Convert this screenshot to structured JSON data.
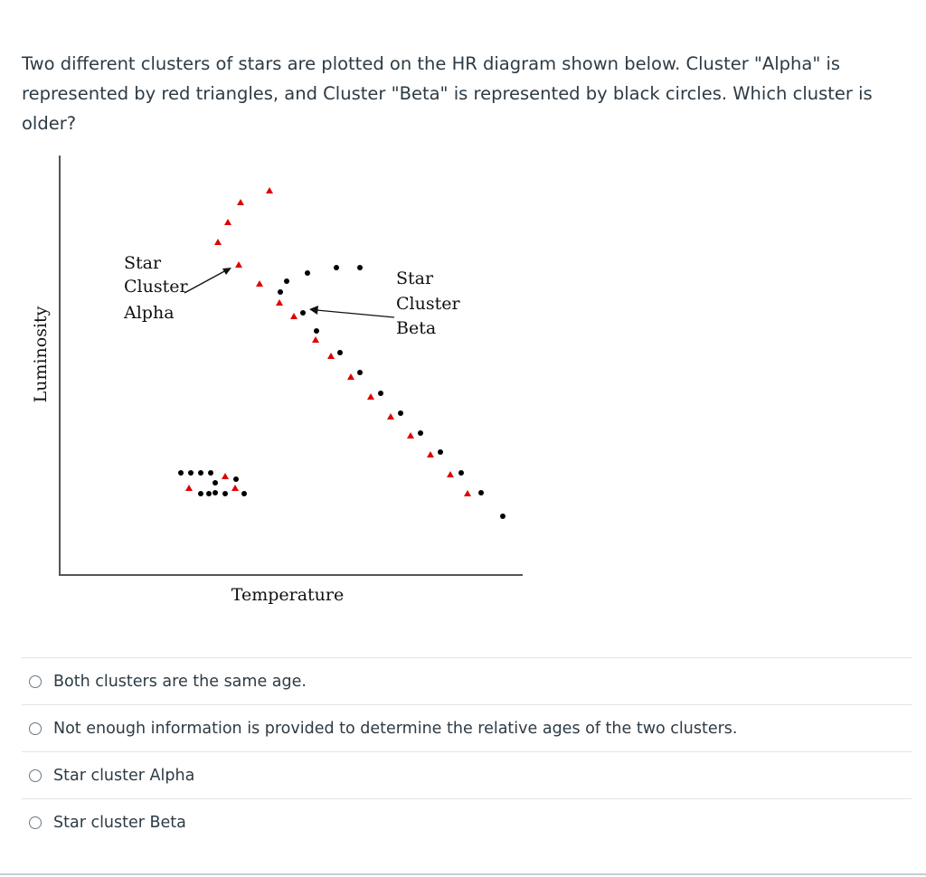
{
  "question": {
    "text": "Two different clusters of stars are plotted on the HR diagram shown below. Cluster \"Alpha\" is represented by red triangles, and Cluster \"Beta\" is represented by black circles. Which cluster is older?"
  },
  "diagram": {
    "y_axis_label": "Luminosity",
    "x_axis_label": "Temperature",
    "alpha_label": [
      "Star",
      "Cluster",
      "Alpha"
    ],
    "beta_label": [
      "Star",
      "Cluster",
      "Beta"
    ],
    "alpha_color": "#e00000",
    "beta_color": "#000000"
  },
  "answers": [
    {
      "label": "Both clusters are the same age."
    },
    {
      "label": "Not enough information is provided to determine the relative ages of the two clusters."
    },
    {
      "label": "Star cluster Alpha"
    },
    {
      "label": "Star cluster Beta"
    }
  ]
}
